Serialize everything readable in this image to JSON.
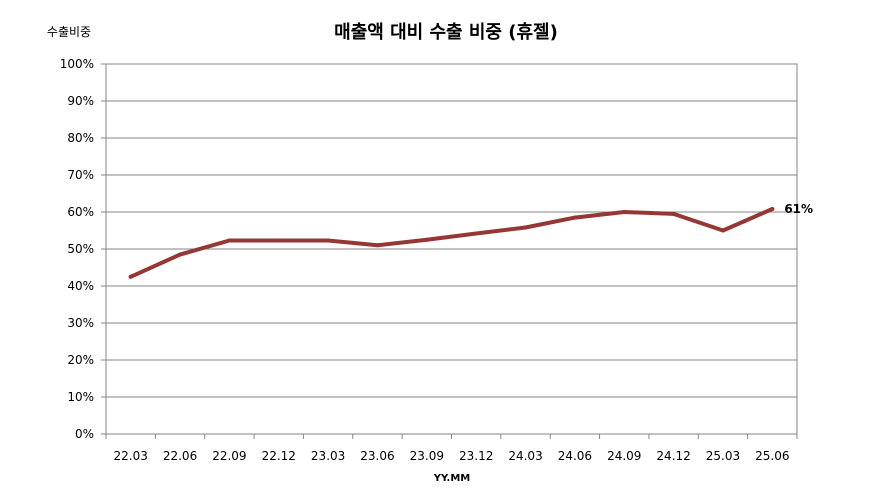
{
  "chart_data": {
    "type": "line",
    "title": "매출액 대비 수출 비중 (휴젤)",
    "ylabel": "수출비중",
    "xlabel": "YY.MM",
    "ylim": [
      0,
      100
    ],
    "y_ticks": [
      "0%",
      "10%",
      "20%",
      "30%",
      "40%",
      "50%",
      "60%",
      "70%",
      "80%",
      "90%",
      "100%"
    ],
    "grid": true,
    "categories": [
      "22.03",
      "22.06",
      "22.09",
      "22.12",
      "23.03",
      "23.06",
      "23.09",
      "23.12",
      "24.03",
      "24.06",
      "24.09",
      "24.12",
      "25.03",
      "25.06"
    ],
    "series": [
      {
        "values": [
          42.5,
          48.5,
          52.3,
          52.3,
          52.3,
          51.0,
          52.5,
          54.2,
          55.8,
          58.5,
          60.0,
          59.5,
          55.0,
          60.8
        ],
        "color": "#953735"
      }
    ],
    "data_labels": [
      {
        "index": 13,
        "text": "61%"
      }
    ]
  }
}
